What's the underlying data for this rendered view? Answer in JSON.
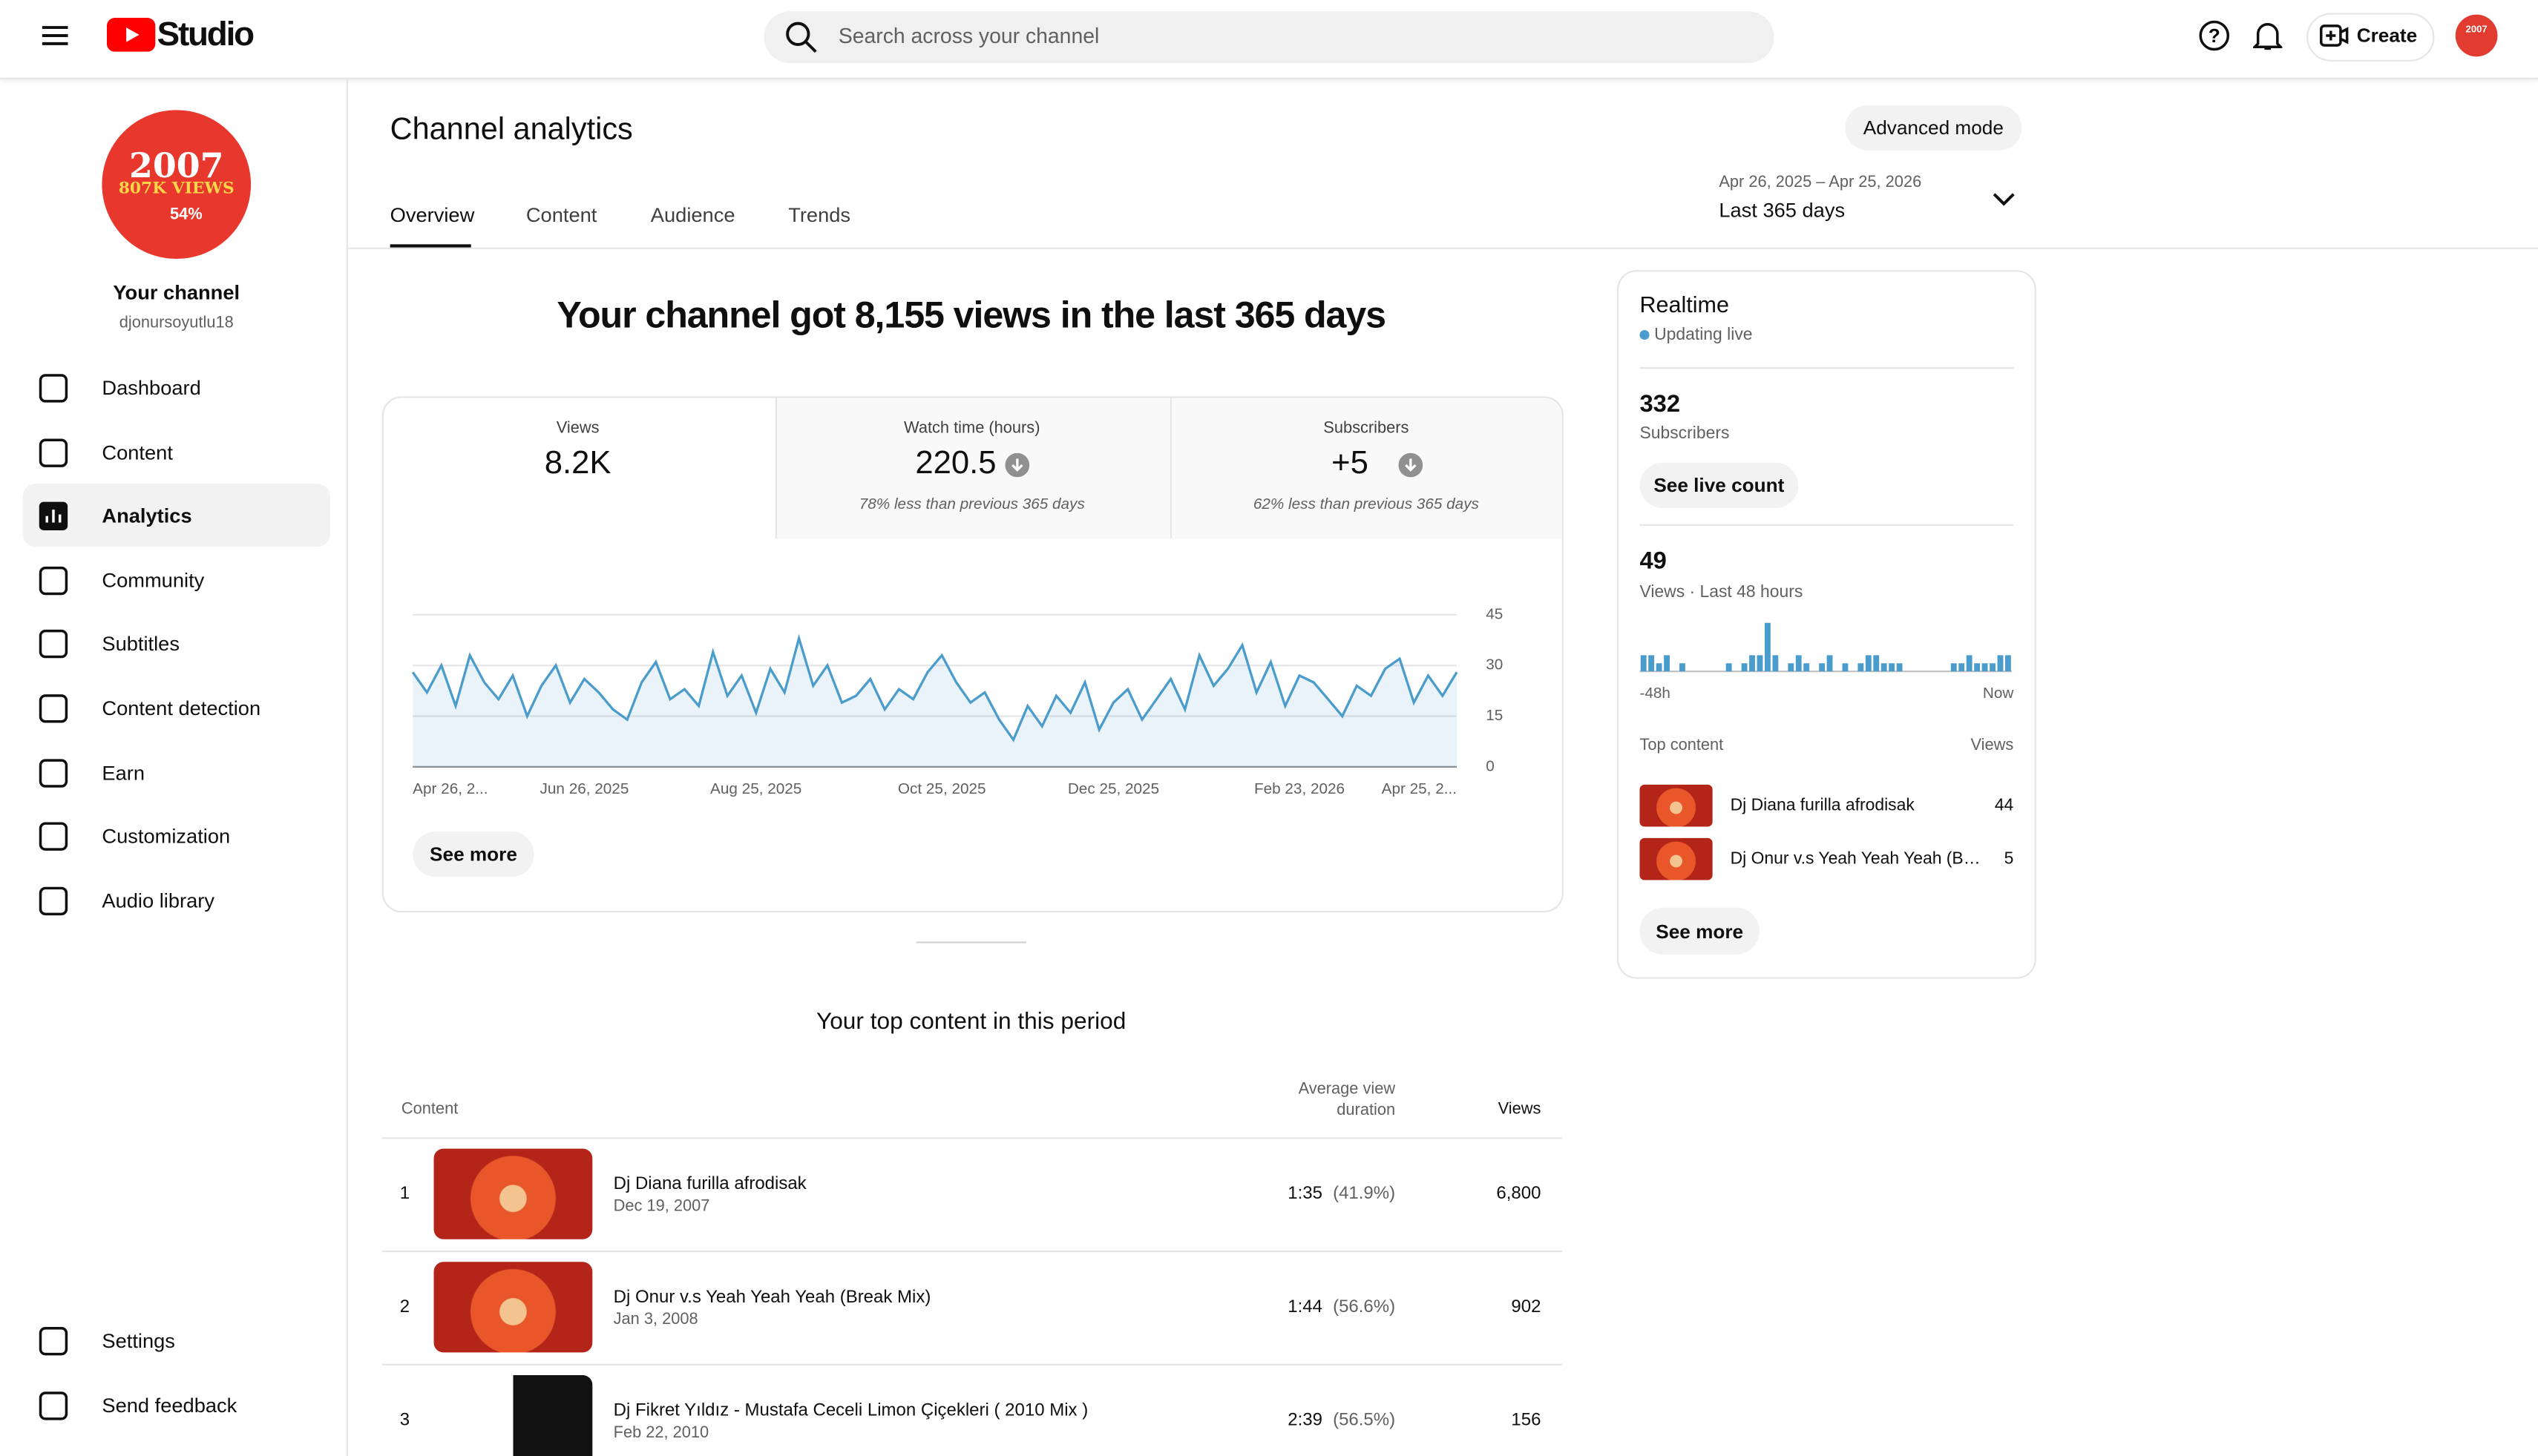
{
  "header": {
    "logo": "Studio",
    "search_placeholder": "Search across your channel",
    "create": "Create",
    "avatar_text": "2007"
  },
  "sidebar": {
    "avatar": {
      "year": "2007",
      "views": "807K VIEWS",
      "percent": "54%"
    },
    "channel_name": "Your channel",
    "handle": "djonursoyutlu18",
    "nav": [
      "Dashboard",
      "Content",
      "Analytics",
      "Community",
      "Subtitles",
      "Content detection",
      "Earn",
      "Customization",
      "Audio library"
    ],
    "footer_nav": [
      "Settings",
      "Send feedback"
    ]
  },
  "main": {
    "title": "Channel analytics",
    "advanced": "Advanced mode",
    "tabs": [
      "Overview",
      "Content",
      "Audience",
      "Trends"
    ],
    "date_range": "Apr 26, 2025 – Apr 25, 2026",
    "period": "Last 365 days",
    "headline": "Your channel got 8,155 views in the last 365 days",
    "metrics": [
      {
        "label": "Views",
        "value": "8.2K"
      },
      {
        "label": "Watch time (hours)",
        "value": "220.5",
        "note": "78% less than previous 365 days"
      },
      {
        "label": "Subscribers",
        "value": "+5",
        "note": "62% less than previous 365 days"
      }
    ],
    "see_more": "See more",
    "top_content_title": "Your top content in this period",
    "table": {
      "headers": [
        "Content",
        "Average view duration",
        "Views"
      ],
      "rows": [
        {
          "rank": "1",
          "title": "Dj Diana furilla afrodisak",
          "date": "Dec 19, 2007",
          "duration": "1:35",
          "percent": "(41.9%)",
          "views": "6,800"
        },
        {
          "rank": "2",
          "title": "Dj Onur v.s Yeah Yeah Yeah (Break Mix)",
          "date": "Jan 3, 2008",
          "duration": "1:44",
          "percent": "(56.6%)",
          "views": "902"
        },
        {
          "rank": "3",
          "title": "Dj Fikret Yıldız - Mustafa Ceceli Limon Çiçekleri ( 2010 Mix )",
          "date": "Feb 22, 2010",
          "duration": "2:39",
          "percent": "(56.5%)",
          "views": "156"
        }
      ]
    }
  },
  "realtime": {
    "title": "Realtime",
    "status": "Updating live",
    "subscribers": "332",
    "subscribers_label": "Subscribers",
    "live_count": "See live count",
    "views": "49",
    "views_label": "Views · Last 48 hours",
    "top_header": "Top content",
    "top_views_header": "Views",
    "top": [
      {
        "title": "Dj Diana furilla afrodisak",
        "views": "44"
      },
      {
        "title": "Dj Onur v.s Yeah Yeah Yeah (B…",
        "views": "5"
      }
    ],
    "see_more": "See more"
  },
  "chart_data": [
    {
      "type": "line",
      "color": "#4a9ccc",
      "ylim": [
        0,
        45
      ],
      "yticks": [
        0,
        15,
        30,
        45
      ],
      "grid": true,
      "categories": [
        "Apr 26, 2...",
        null,
        null,
        null,
        null,
        null,
        null,
        null,
        null,
        null,
        null,
        null,
        "Jun 26, 2025",
        null,
        null,
        null,
        null,
        null,
        null,
        null,
        null,
        null,
        null,
        null,
        "Aug 25, 2025",
        null,
        null,
        null,
        null,
        null,
        null,
        null,
        null,
        null,
        null,
        null,
        null,
        "Oct 25, 2025",
        null,
        null,
        null,
        null,
        null,
        null,
        null,
        null,
        null,
        null,
        null,
        "Dec 25, 2025",
        null,
        null,
        null,
        null,
        null,
        null,
        null,
        null,
        null,
        null,
        null,
        null,
        "Feb 23, 2026",
        null,
        null,
        null,
        null,
        null,
        null,
        null,
        null,
        null,
        null,
        "Apr 25, 2..."
      ],
      "values": [
        28,
        22,
        30,
        18,
        33,
        25,
        20,
        27,
        15,
        24,
        30,
        19,
        26,
        22,
        17,
        14,
        25,
        31,
        20,
        23,
        18,
        34,
        21,
        27,
        16,
        29,
        22,
        38,
        24,
        30,
        19,
        21,
        26,
        17,
        23,
        20,
        28,
        33,
        25,
        19,
        22,
        14,
        8,
        18,
        12,
        21,
        16,
        25,
        11,
        19,
        23,
        14,
        20,
        26,
        17,
        33,
        24,
        29,
        36,
        22,
        31,
        18,
        27,
        25,
        20,
        15,
        24,
        21,
        29,
        32,
        19,
        27,
        21,
        28
      ]
    },
    {
      "type": "bar",
      "color": "#4a9ccc",
      "ylim": [
        0,
        6
      ],
      "categories": [
        "-48h",
        null,
        null,
        null,
        null,
        null,
        null,
        null,
        null,
        null,
        null,
        null,
        null,
        null,
        null,
        null,
        null,
        null,
        null,
        null,
        null,
        null,
        null,
        null,
        null,
        null,
        null,
        null,
        null,
        null,
        null,
        null,
        null,
        null,
        null,
        null,
        null,
        null,
        null,
        null,
        null,
        null,
        null,
        null,
        null,
        null,
        null,
        "Now"
      ],
      "values": [
        2,
        2,
        1,
        2,
        0,
        1,
        0,
        0,
        0,
        0,
        0,
        1,
        0,
        1,
        2,
        2,
        6,
        2,
        0,
        1,
        2,
        1,
        0,
        1,
        2,
        0,
        1,
        0,
        1,
        2,
        2,
        1,
        1,
        1,
        0,
        0,
        0,
        0,
        0,
        0,
        1,
        1,
        2,
        1,
        1,
        1,
        2,
        2
      ]
    }
  ]
}
